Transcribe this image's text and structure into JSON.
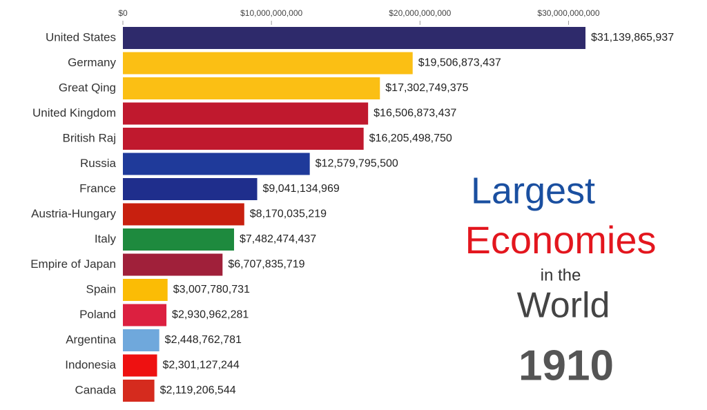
{
  "chart_data": {
    "type": "hbar",
    "categories": [
      "United States",
      "Germany",
      "Great Qing",
      "United Kingdom",
      "British Raj",
      "Russia",
      "France",
      "Austria-Hungary",
      "Italy",
      "Empire of Japan",
      "Spain",
      "Poland",
      "Argentina",
      "Indonesia",
      "Canada"
    ],
    "values": [
      31139865937,
      19506873437,
      17302749375,
      16506873437,
      16205498750,
      12579795500,
      9041134969,
      8170035219,
      7482474437,
      6707835719,
      3007780731,
      2930962281,
      2448762781,
      2301127244,
      2119206544
    ],
    "value_labels": [
      "$31,139,865,937",
      "$19,506,873,437",
      "$17,302,749,375",
      "$16,506,873,437",
      "$16,205,498,750",
      "$12,579,795,500",
      "$9,041,134,969",
      "$8,170,035,219",
      "$7,482,474,437",
      "$6,707,835,719",
      "$3,007,780,731",
      "$2,930,962,281",
      "$2,448,762,781",
      "$2,301,127,244",
      "$2,119,206,544"
    ],
    "colors": [
      "#2e2a6b",
      "#fbbf14",
      "#fbbf14",
      "#c0192e",
      "#c0192e",
      "#1f3a9a",
      "#1f2e8c",
      "#c8200f",
      "#1e8a3e",
      "#a0203a",
      "#fbbc05",
      "#dc2040",
      "#6fa8dc",
      "#ee1111",
      "#d52b1e"
    ],
    "xlim": [
      0,
      33000000000
    ],
    "xticks": [
      {
        "value": 0,
        "label": "$0"
      },
      {
        "value": 10000000000,
        "label": "$10,000,000,000"
      },
      {
        "value": 20000000000,
        "label": "$20,000,000,000"
      },
      {
        "value": 30000000000,
        "label": "$30,000,000,000"
      }
    ],
    "annotations": [
      "Largest",
      "Economies",
      "in the",
      "World",
      "1910"
    ]
  }
}
